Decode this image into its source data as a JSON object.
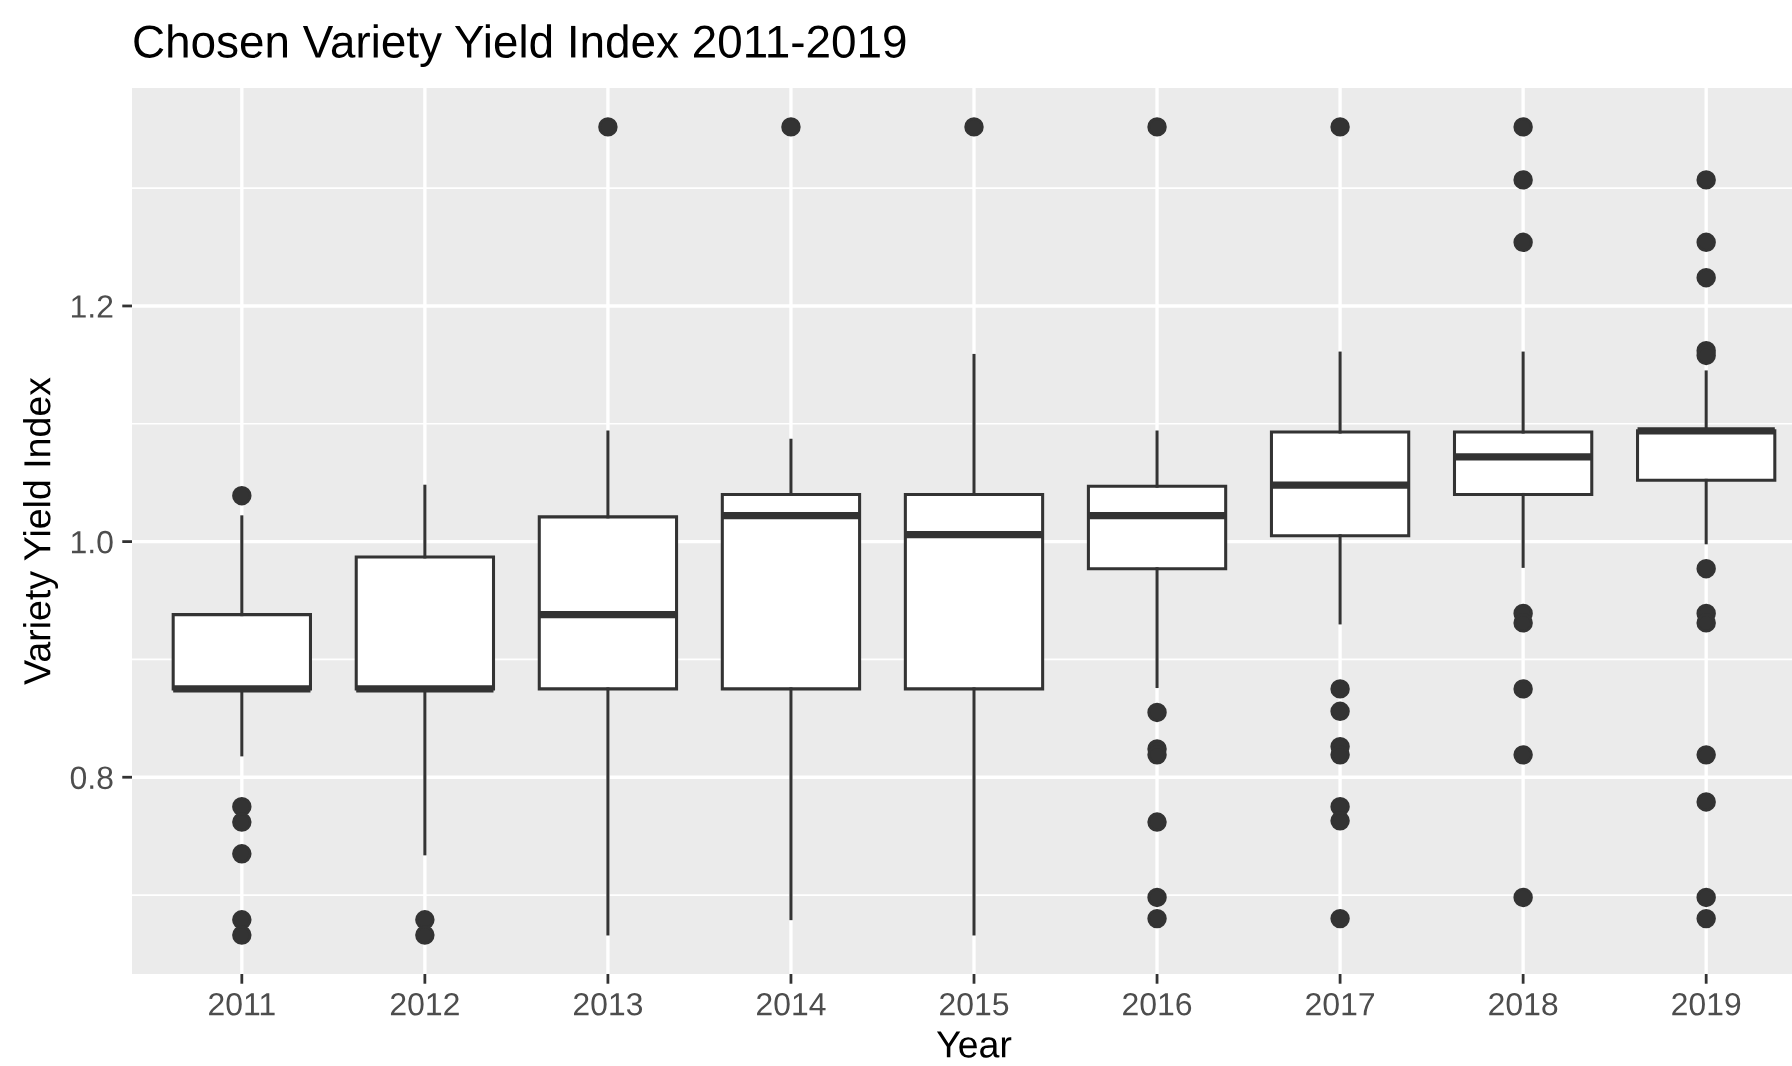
{
  "chart_data": {
    "type": "box",
    "title": "Chosen Variety Yield Index 2011-2019",
    "xlabel": "Year",
    "ylabel": "Variety Yield Index",
    "categories": [
      "2011",
      "2012",
      "2013",
      "2014",
      "2015",
      "2016",
      "2017",
      "2018",
      "2019"
    ],
    "boxes": [
      {
        "low": 0.819,
        "q1": 0.875,
        "median": 0.875,
        "q3": 0.938,
        "high": 1.021,
        "outliers": [
          1.039,
          0.775,
          0.762,
          0.735,
          0.679,
          0.666
        ]
      },
      {
        "low": 0.735,
        "q1": 0.875,
        "median": 0.875,
        "q3": 0.987,
        "high": 1.047,
        "outliers": [
          0.679,
          0.666
        ]
      },
      {
        "low": 0.667,
        "q1": 0.875,
        "median": 0.938,
        "q3": 1.021,
        "high": 1.093,
        "outliers": [
          1.352
        ]
      },
      {
        "low": 0.68,
        "q1": 0.875,
        "median": 1.022,
        "q3": 1.04,
        "high": 1.086,
        "outliers": [
          1.352
        ]
      },
      {
        "low": 0.667,
        "q1": 0.875,
        "median": 1.006,
        "q3": 1.04,
        "high": 1.158,
        "outliers": [
          1.352
        ]
      },
      {
        "low": 0.877,
        "q1": 0.977,
        "median": 1.022,
        "q3": 1.047,
        "high": 1.093,
        "outliers": [
          1.352,
          0.855,
          0.824,
          0.819,
          0.762,
          0.698,
          0.68
        ]
      },
      {
        "low": 0.931,
        "q1": 1.005,
        "median": 1.048,
        "q3": 1.093,
        "high": 1.16,
        "outliers": [
          1.352,
          0.875,
          0.856,
          0.826,
          0.819,
          0.775,
          0.763,
          0.68
        ]
      },
      {
        "low": 0.979,
        "q1": 1.04,
        "median": 1.072,
        "q3": 1.093,
        "high": 1.16,
        "outliers": [
          1.352,
          1.307,
          1.254,
          0.939,
          0.931,
          0.875,
          0.819,
          0.698
        ]
      },
      {
        "low": 0.999,
        "q1": 1.052,
        "median": 1.094,
        "q3": 1.094,
        "high": 1.144,
        "outliers": [
          1.307,
          1.254,
          1.224,
          1.162,
          1.158,
          0.977,
          0.939,
          0.931,
          0.819,
          0.779,
          0.698,
          0.68
        ]
      }
    ],
    "ylim": [
      0.633,
      1.385
    ],
    "yticks": [
      0.8,
      {
        "value": 1,
        "label": "1.0"
      },
      1.2
    ],
    "grid": true
  }
}
